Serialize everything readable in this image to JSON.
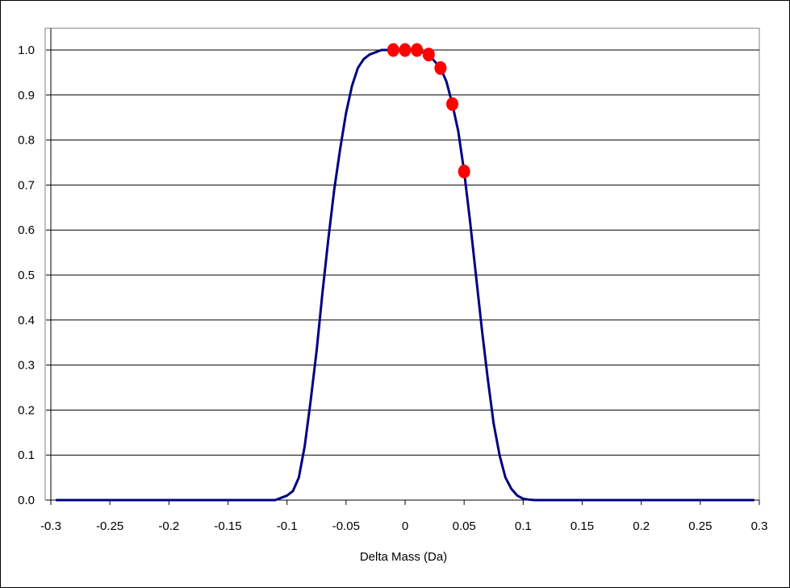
{
  "chart_data": {
    "type": "line",
    "title": "",
    "xlabel": "Delta Mass (Da)",
    "ylabel": "",
    "xlim": [
      -0.3,
      0.3
    ],
    "ylim": [
      0,
      1.0
    ],
    "x_ticks": [
      -0.3,
      -0.25,
      -0.2,
      -0.15,
      -0.1,
      -0.05,
      0,
      0.05,
      0.1,
      0.15,
      0.2,
      0.25,
      0.3
    ],
    "x_tick_labels": [
      "-0.3",
      "-0.25",
      "-0.2",
      "-0.15",
      "-0.1",
      "-0.05",
      "0",
      "0.05",
      "0.1",
      "0.15",
      "0.2",
      "0.25",
      "0.3"
    ],
    "y_ticks": [
      0,
      0.1,
      0.2,
      0.3,
      0.4,
      0.5,
      0.6,
      0.7,
      0.8,
      0.9,
      1.0
    ],
    "y_tick_labels": [
      "0.0",
      "0.1",
      "0.2",
      "0.3",
      "0.4",
      "0.5",
      "0.6",
      "0.7",
      "0.8",
      "0.9",
      "1.0"
    ],
    "grid": "horizontal",
    "legend": "none",
    "series": [
      {
        "type": "line",
        "color": "#000080",
        "x": [
          -0.295,
          -0.11,
          -0.105,
          -0.1,
          -0.095,
          -0.09,
          -0.085,
          -0.08,
          -0.075,
          -0.07,
          -0.065,
          -0.06,
          -0.055,
          -0.05,
          -0.045,
          -0.04,
          -0.035,
          -0.03,
          -0.025,
          -0.02,
          -0.015,
          -0.01,
          0,
          0.01,
          0.02,
          0.03,
          0.035,
          0.04,
          0.045,
          0.05,
          0.055,
          0.06,
          0.065,
          0.07,
          0.075,
          0.08,
          0.085,
          0.09,
          0.095,
          0.1,
          0.105,
          0.11,
          0.295
        ],
        "y": [
          0,
          0,
          0.005,
          0.01,
          0.02,
          0.05,
          0.12,
          0.22,
          0.33,
          0.46,
          0.58,
          0.69,
          0.78,
          0.86,
          0.92,
          0.96,
          0.98,
          0.99,
          0.995,
          1.0,
          1.0,
          1.0,
          1.0,
          1.0,
          0.99,
          0.96,
          0.93,
          0.88,
          0.82,
          0.73,
          0.62,
          0.5,
          0.38,
          0.27,
          0.17,
          0.1,
          0.05,
          0.025,
          0.01,
          0.003,
          0.001,
          0,
          0
        ]
      },
      {
        "type": "scatter",
        "color": "#ff0000",
        "x": [
          -0.01,
          0,
          0.01,
          0.02,
          0.03,
          0.04,
          0.05
        ],
        "y": [
          1.0,
          1.0,
          1.0,
          0.99,
          0.96,
          0.88,
          0.73
        ]
      }
    ]
  }
}
